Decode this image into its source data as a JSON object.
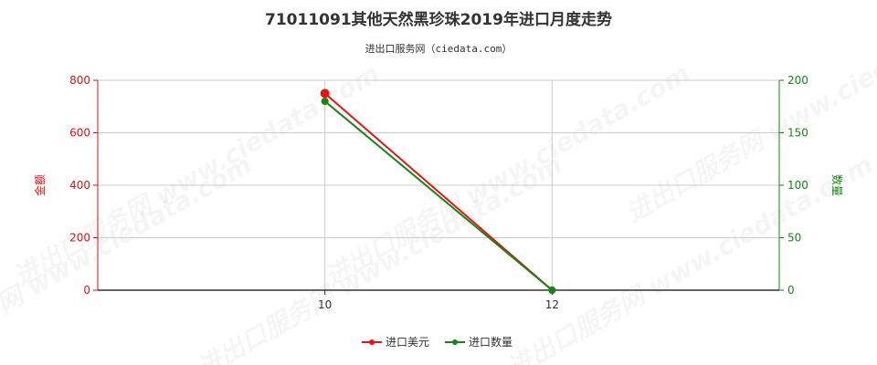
{
  "chart_data": {
    "type": "line",
    "title": "71011091其他天然黑珍珠2019年进口月度走势",
    "subtitle": "进出口服务网（ciedata.com）",
    "x": [
      10,
      12
    ],
    "x_ticks": [
      "10",
      "12"
    ],
    "y_left": {
      "label": "金额",
      "ticks": [
        "0",
        "200",
        "400",
        "600",
        "800"
      ],
      "range": [
        0,
        800
      ],
      "color": "#dd1111"
    },
    "y_right": {
      "label": "数量",
      "ticks": [
        "0",
        "50",
        "100",
        "150",
        "200"
      ],
      "range": [
        0,
        200
      ],
      "color": "#118811"
    },
    "series": [
      {
        "name": "进口美元",
        "axis": "left",
        "color": "#ee1111",
        "values": [
          750,
          0
        ]
      },
      {
        "name": "进口数量",
        "axis": "right",
        "color": "#118811",
        "values": [
          180,
          0
        ]
      }
    ],
    "grid": true,
    "legend_position": "bottom-center",
    "watermark": "进出口服务网 www.ciedata.com"
  }
}
